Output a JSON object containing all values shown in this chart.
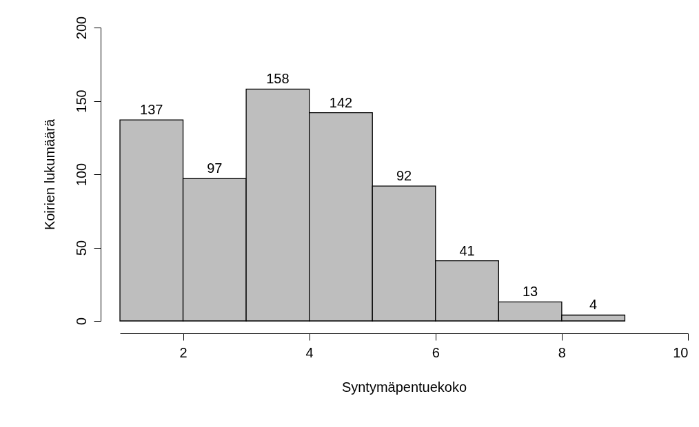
{
  "chart_data": {
    "type": "histogram",
    "xlabel": "Syntymäpentuekoko",
    "ylabel": "Koirien lukumäärä",
    "bins": [
      1,
      2,
      3,
      4,
      5,
      6,
      7,
      8,
      9
    ],
    "values": [
      137,
      97,
      158,
      142,
      92,
      41,
      13,
      4
    ],
    "color": "#bebebe",
    "data_labels": true,
    "grid": false,
    "xlim": [
      1,
      10
    ],
    "xticks": [
      2,
      4,
      6,
      8,
      10
    ],
    "ylim": [
      0,
      200
    ],
    "yticks": [
      0,
      50,
      100,
      150,
      200
    ]
  }
}
